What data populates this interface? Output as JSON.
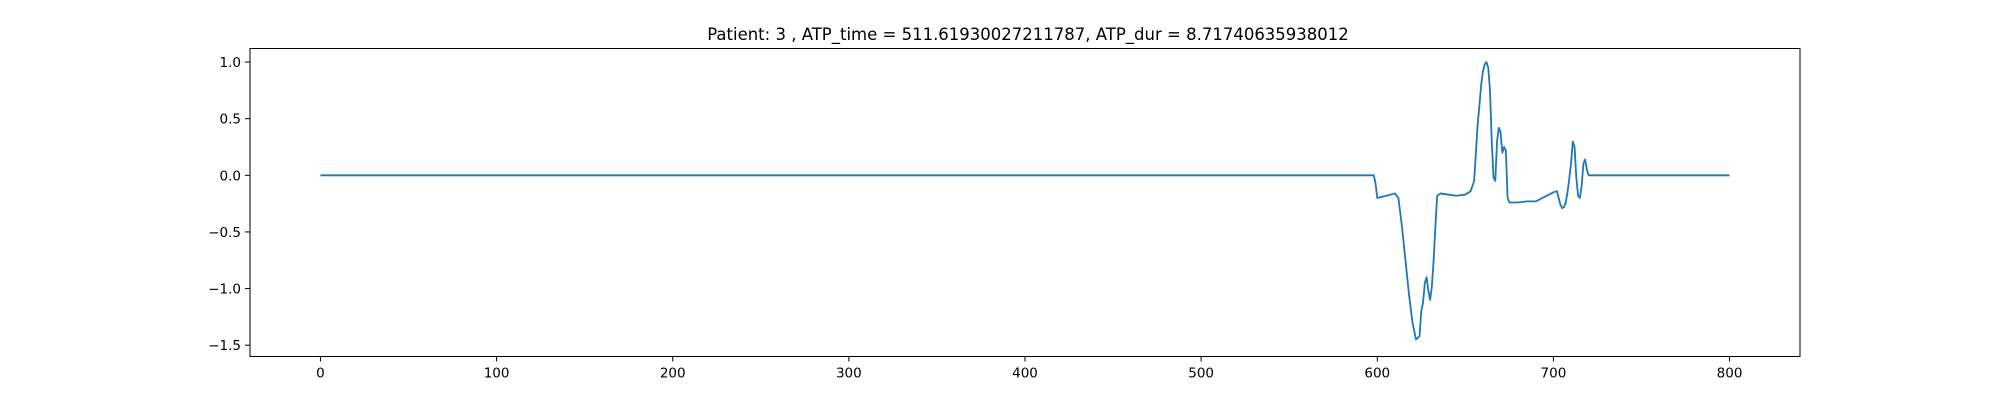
{
  "chart_data": {
    "type": "line",
    "title": "Patient: 3 , ATP_time = 511.61930027211787, ATP_dur = 8.71740635938012",
    "xlabel": "",
    "ylabel": "",
    "xlim": [
      -40,
      840
    ],
    "ylim": [
      -1.6,
      1.12
    ],
    "xticks": [
      0,
      100,
      200,
      300,
      400,
      500,
      600,
      700,
      800
    ],
    "xtick_labels": [
      "0",
      "100",
      "200",
      "300",
      "400",
      "500",
      "600",
      "700",
      "800"
    ],
    "yticks": [
      1.0,
      0.5,
      0.0,
      -0.5,
      -1.0,
      -1.5
    ],
    "ytick_labels": [
      "1.0",
      "0.5",
      "0.0",
      "−0.5",
      "−1.0",
      "−1.5"
    ],
    "grid": false,
    "series": [
      {
        "color": "#1f77b4",
        "x": [
          0,
          100,
          200,
          300,
          400,
          500,
          598,
          599,
          600,
          605,
          610,
          612,
          614,
          616,
          618,
          620,
          622,
          624,
          625,
          626,
          627,
          628,
          629,
          630,
          631,
          632,
          633,
          634,
          635,
          636,
          640,
          645,
          650,
          653,
          655,
          656,
          657,
          658,
          659,
          660,
          661,
          662,
          663,
          664,
          665,
          666,
          667,
          668,
          669,
          670,
          671,
          672,
          673,
          674,
          675,
          680,
          685,
          690,
          695,
          700,
          702,
          703,
          704,
          705,
          706,
          707,
          708,
          709,
          710,
          711,
          712,
          713,
          714,
          715,
          716,
          717,
          718,
          719,
          720,
          721,
          730,
          750,
          800
        ],
        "y": [
          0,
          0,
          0,
          0,
          0,
          0,
          0,
          -0.07,
          -0.2,
          -0.18,
          -0.16,
          -0.2,
          -0.45,
          -0.75,
          -1.05,
          -1.3,
          -1.45,
          -1.42,
          -1.2,
          -1.12,
          -0.95,
          -0.9,
          -1.02,
          -1.1,
          -0.98,
          -0.75,
          -0.45,
          -0.18,
          -0.17,
          -0.16,
          -0.17,
          -0.18,
          -0.17,
          -0.14,
          -0.05,
          0.2,
          0.45,
          0.62,
          0.8,
          0.92,
          0.98,
          1.0,
          0.95,
          0.75,
          0.3,
          -0.02,
          -0.05,
          0.3,
          0.42,
          0.38,
          0.2,
          0.25,
          0.22,
          -0.2,
          -0.24,
          -0.24,
          -0.23,
          -0.23,
          -0.19,
          -0.15,
          -0.14,
          -0.2,
          -0.26,
          -0.29,
          -0.28,
          -0.24,
          -0.15,
          -0.03,
          0.1,
          0.3,
          0.25,
          -0.02,
          -0.18,
          -0.2,
          -0.1,
          0.1,
          0.14,
          0.05,
          0,
          0,
          0,
          0,
          0
        ]
      }
    ]
  }
}
